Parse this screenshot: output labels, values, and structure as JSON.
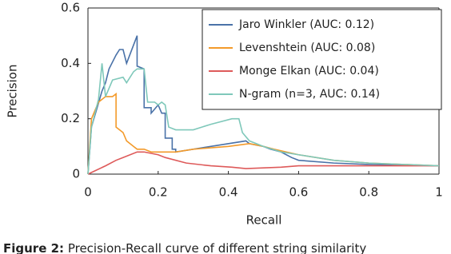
{
  "chart_data": {
    "type": "line",
    "xlabel": "Recall",
    "ylabel": "Precision",
    "xlim": [
      0,
      1
    ],
    "xticks": [
      0,
      0.2,
      0.4,
      0.6,
      0.8,
      1
    ],
    "ylim": [
      0,
      0.6
    ],
    "yticks": [
      0,
      0.2,
      0.4,
      0.6
    ],
    "legend": "upper right",
    "series": [
      {
        "name": "Jaro Winkler (AUC: 0.12)",
        "color": "#4a72a8",
        "x": [
          0,
          0.01,
          0.04,
          0.05,
          0.06,
          0.08,
          0.09,
          0.1,
          0.11,
          0.14,
          0.14,
          0.16,
          0.16,
          0.18,
          0.18,
          0.2,
          0.21,
          0.22,
          0.22,
          0.24,
          0.24,
          0.25,
          0.25,
          0.45,
          0.46,
          0.5,
          0.52,
          0.55,
          0.58,
          0.6,
          0.7,
          0.8,
          1
        ],
        "values": [
          0,
          0.17,
          0.3,
          0.33,
          0.38,
          0.43,
          0.45,
          0.45,
          0.4,
          0.5,
          0.39,
          0.38,
          0.24,
          0.24,
          0.22,
          0.25,
          0.22,
          0.22,
          0.13,
          0.13,
          0.09,
          0.09,
          0.08,
          0.12,
          0.11,
          0.1,
          0.09,
          0.08,
          0.06,
          0.05,
          0.04,
          0.035,
          0.03
        ]
      },
      {
        "name": "Levenshtein (AUC: 0.08)",
        "color": "#f39a2a",
        "x": [
          0,
          0.01,
          0.03,
          0.05,
          0.07,
          0.08,
          0.08,
          0.1,
          0.11,
          0.13,
          0.14,
          0.16,
          0.18,
          0.2,
          0.25,
          0.3,
          0.4,
          0.46,
          0.5,
          0.53,
          0.6,
          0.7,
          0.8,
          1
        ],
        "values": [
          0,
          0.2,
          0.26,
          0.28,
          0.28,
          0.29,
          0.17,
          0.15,
          0.12,
          0.1,
          0.09,
          0.09,
          0.08,
          0.08,
          0.08,
          0.09,
          0.1,
          0.11,
          0.1,
          0.09,
          0.07,
          0.05,
          0.04,
          0.03
        ]
      },
      {
        "name": "Monge Elkan (AUC: 0.04)",
        "color": "#de5a5a",
        "x": [
          0,
          0.05,
          0.08,
          0.1,
          0.14,
          0.16,
          0.2,
          0.22,
          0.28,
          0.35,
          0.41,
          0.45,
          0.55,
          0.6,
          0.7,
          0.8,
          1
        ],
        "values": [
          0,
          0.03,
          0.05,
          0.06,
          0.08,
          0.08,
          0.07,
          0.06,
          0.04,
          0.03,
          0.025,
          0.02,
          0.025,
          0.03,
          0.03,
          0.03,
          0.03
        ]
      },
      {
        "name": "N-gram (n=3, AUC: 0.14)",
        "color": "#7fc8ba",
        "x": [
          0,
          0.01,
          0.03,
          0.04,
          0.05,
          0.07,
          0.1,
          0.11,
          0.13,
          0.14,
          0.16,
          0.17,
          0.19,
          0.2,
          0.21,
          0.22,
          0.23,
          0.25,
          0.3,
          0.35,
          0.41,
          0.43,
          0.44,
          0.46,
          0.5,
          0.55,
          0.6,
          0.7,
          0.8,
          1
        ],
        "values": [
          0,
          0.17,
          0.27,
          0.4,
          0.28,
          0.34,
          0.35,
          0.33,
          0.37,
          0.38,
          0.38,
          0.26,
          0.26,
          0.25,
          0.26,
          0.25,
          0.17,
          0.16,
          0.16,
          0.18,
          0.2,
          0.2,
          0.15,
          0.12,
          0.1,
          0.08,
          0.07,
          0.05,
          0.04,
          0.03
        ]
      }
    ]
  },
  "caption": {
    "label": "Figure 2:",
    "text": "Precision-Recall curve of different string similarity"
  }
}
